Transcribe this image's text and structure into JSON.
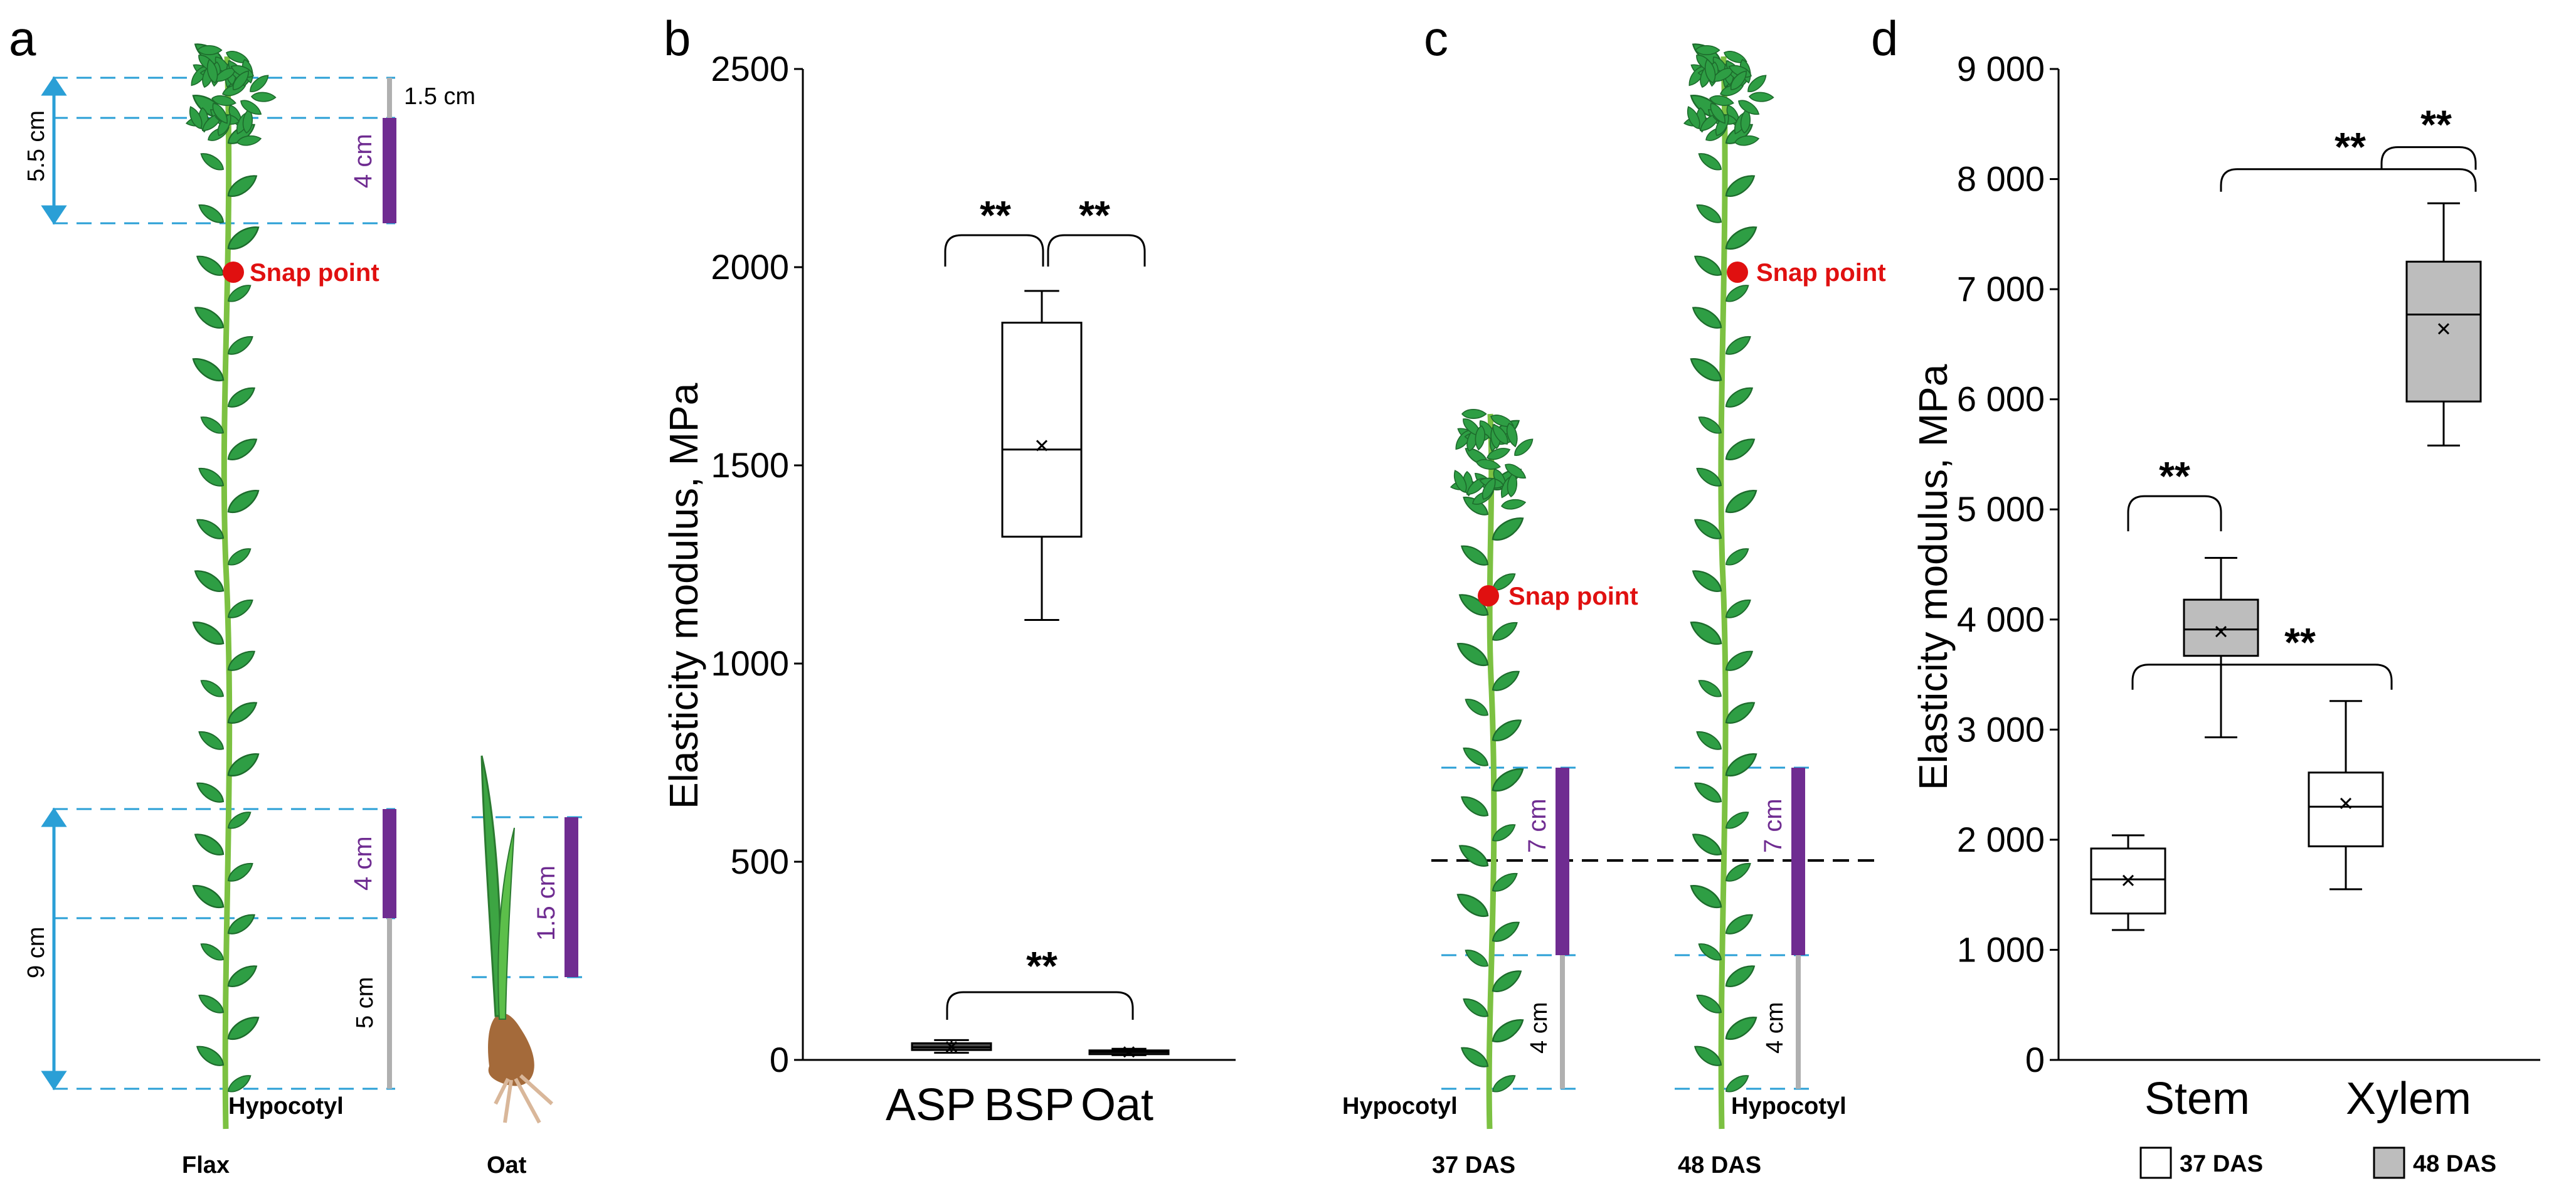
{
  "panels": {
    "a": "a",
    "b": "b",
    "c": "c",
    "d": "d"
  },
  "panel_a": {
    "dim_top_total": "5.5 cm",
    "dim_top_small": "1.5 cm",
    "dim_top_segment": "4 cm",
    "snap_point": "Snap point",
    "dim_bottom_total": "9 cm",
    "dim_bottom_segment": "4 cm",
    "dim_bottom_lower": "5 cm",
    "oat_segment": "1.5 cm",
    "hypocotyl": "Hypocotyl",
    "flax_label": "Flax",
    "oat_label": "Oat"
  },
  "panel_c": {
    "snap_point_37": "Snap point",
    "snap_point_48": "Snap point",
    "segment_37": "7 cm",
    "lower_37": "4 cm",
    "segment_48": "7 cm",
    "lower_48": "4 cm",
    "hypocotyl_37": "Hypocotyl",
    "hypocotyl_48": "Hypocotyl",
    "label_37": "37 DAS",
    "label_48": "48 DAS"
  },
  "colors": {
    "purple": "#6f2c91",
    "dash_blue": "#2a9fd6",
    "snap_red": "#e01010",
    "plant_green": "#2e9e44",
    "grey_box": "#bdbdbd"
  },
  "chart_data": [
    {
      "type": "box",
      "panel": "b",
      "title": "",
      "xlabel": "",
      "ylabel": "Elasticity modulus, MPa",
      "ylim": [
        0,
        2500
      ],
      "yticks": [
        0,
        500,
        1000,
        1500,
        2000,
        2500
      ],
      "ytick_labels": [
        "0",
        "500",
        "1000",
        "1500",
        "2000",
        "2500"
      ],
      "categories": [
        "ASP",
        "BSP",
        "Oat"
      ],
      "boxes": [
        {
          "name": "ASP",
          "min": 18,
          "q1": 25,
          "median": 32,
          "q3": 42,
          "max": 50,
          "mean": 33,
          "fill": "#4a4a4a"
        },
        {
          "name": "BSP",
          "min": 1110,
          "q1": 1320,
          "median": 1540,
          "q3": 1860,
          "max": 1940,
          "mean": 1550,
          "fill": "#ffffff"
        },
        {
          "name": "Oat",
          "min": 12,
          "q1": 16,
          "median": 20,
          "q3": 24,
          "max": 28,
          "mean": 20,
          "fill": "#4a4a4a"
        }
      ],
      "significance": [
        {
          "label": "**",
          "from": "ASP",
          "to": "BSP"
        },
        {
          "label": "**",
          "from": "BSP",
          "to": "Oat"
        },
        {
          "label": "**",
          "from": "ASP",
          "to": "Oat"
        }
      ]
    },
    {
      "type": "box",
      "panel": "d",
      "title": "",
      "xlabel": "",
      "ylabel": "Elasticity modulus, MPa",
      "ylim": [
        0,
        9000
      ],
      "yticks": [
        0,
        1000,
        2000,
        3000,
        4000,
        5000,
        6000,
        7000,
        8000,
        9000
      ],
      "ytick_labels": [
        "0",
        "1 000",
        "2 000",
        "3 000",
        "4 000",
        "5 000",
        "6 000",
        "7 000",
        "8 000",
        "9 000"
      ],
      "categories": [
        "Stem",
        "Xylem"
      ],
      "series": [
        {
          "name": "37 DAS",
          "fill": "#ffffff",
          "boxes": [
            {
              "category": "Stem",
              "min": 1180,
              "q1": 1330,
              "median": 1640,
              "q3": 1920,
              "max": 2040,
              "mean": 1630
            },
            {
              "category": "Xylem",
              "min": 1550,
              "q1": 1940,
              "median": 2300,
              "q3": 2610,
              "max": 3260,
              "mean": 2330
            }
          ]
        },
        {
          "name": "48 DAS",
          "fill": "#bdbdbd",
          "boxes": [
            {
              "category": "Stem",
              "min": 2930,
              "q1": 3670,
              "median": 3910,
              "q3": 4180,
              "max": 4560,
              "mean": 3890
            },
            {
              "category": "Xylem",
              "min": 5580,
              "q1": 5980,
              "median": 6770,
              "q3": 7250,
              "max": 7780,
              "mean": 6640
            }
          ]
        }
      ],
      "legend": [
        "37 DAS",
        "48 DAS"
      ],
      "legend_position": "bottom",
      "significance": [
        {
          "label": "**",
          "group": "Stem 37 DAS vs Stem 48 DAS"
        },
        {
          "label": "**",
          "group": "Stem 37 DAS vs Xylem 37 DAS"
        },
        {
          "label": "**",
          "group": "Stem 48 DAS vs Xylem 48 DAS"
        },
        {
          "label": "**",
          "group": "Xylem 37 DAS vs Xylem 48 DAS"
        }
      ]
    }
  ]
}
